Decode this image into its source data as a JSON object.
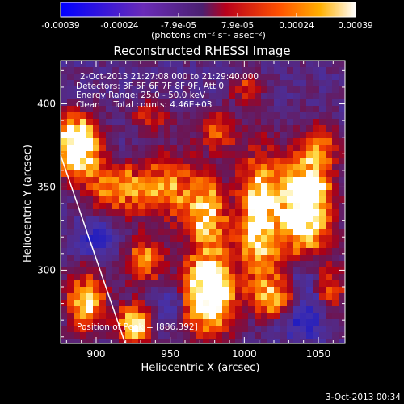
{
  "colorbar": {
    "tick_labels": [
      "-0.00039",
      "-0.00024",
      "-7.9e-05",
      "7.9e-05",
      "0.00024",
      "0.00039"
    ],
    "units_label": "(photons cm⁻² s⁻¹ asec⁻²)",
    "range": [
      -0.00039,
      0.00039
    ],
    "colors": [
      "#0000ff",
      "#6a2bb8",
      "#5a2a8c",
      "#b8001b",
      "#ff5000",
      "#ffb000",
      "#ffffff"
    ]
  },
  "plot": {
    "title": "Reconstructed RHESSI Image",
    "xlabel": "Heliocentric X (arcsec)",
    "ylabel": "Heliocentric Y (arcsec)",
    "x_ticks": [
      "900",
      "950",
      "1000",
      "1050"
    ],
    "y_ticks": [
      "400",
      "350",
      "300"
    ],
    "xlim": [
      876,
      1068
    ],
    "ylim": [
      256,
      426
    ],
    "annotations": [
      "2-Oct-2013 21:27:08.000 to 21:29:40.000",
      "Detectors: 3F 5F 6F 7F 8F 9F, Att 0",
      "Energy Range: 25.0 - 50.0 keV",
      "Clean     Total counts: 4.46E+03"
    ],
    "peak_label": "Position of Peak = [886,392]"
  },
  "footer": {
    "timestamp": "3-Oct-2013 00:34"
  }
}
